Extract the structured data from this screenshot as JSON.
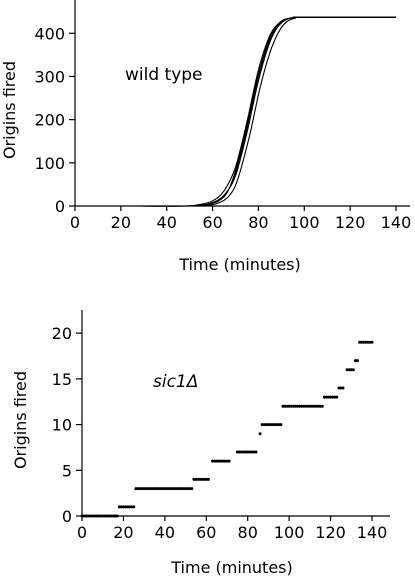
{
  "chart_data": [
    {
      "type": "line",
      "title": "",
      "xlabel": "Time (minutes)",
      "ylabel": "Origins fired",
      "xlim": [
        0,
        140
      ],
      "ylim": [
        0,
        440
      ],
      "xticks": [
        "0",
        "20",
        "40",
        "60",
        "80",
        "100",
        "120",
        "140"
      ],
      "yticks": [
        "0",
        "100",
        "200",
        "300",
        "400"
      ],
      "annotation": "wild type",
      "grid": false,
      "series": [
        {
          "x": [
            28,
            50,
            55,
            60,
            65,
            70,
            75,
            80,
            85,
            90,
            95,
            100,
            140
          ],
          "y": [
            0,
            0,
            2,
            8,
            25,
            70,
            170,
            290,
            380,
            425,
            436,
            437,
            437
          ]
        },
        {
          "x": [
            28,
            48,
            54,
            60,
            65,
            70,
            75,
            80,
            85,
            90,
            95,
            100,
            140
          ],
          "y": [
            0,
            0,
            3,
            12,
            35,
            90,
            195,
            315,
            395,
            428,
            436,
            437,
            437
          ]
        },
        {
          "x": [
            28,
            50,
            56,
            62,
            66,
            70,
            75,
            80,
            85,
            90,
            95,
            100,
            140
          ],
          "y": [
            0,
            0,
            2,
            10,
            30,
            75,
            180,
            300,
            385,
            424,
            436,
            437,
            437
          ]
        },
        {
          "x": [
            28,
            52,
            57,
            62,
            67,
            71,
            76,
            81,
            86,
            91,
            96,
            101,
            140
          ],
          "y": [
            0,
            0,
            1,
            6,
            22,
            62,
            160,
            280,
            370,
            420,
            435,
            437,
            437
          ]
        },
        {
          "x": [
            28,
            49,
            55,
            61,
            66,
            70,
            75,
            80,
            85,
            90,
            95,
            100,
            140
          ],
          "y": [
            0,
            0,
            2,
            9,
            28,
            82,
            188,
            305,
            390,
            426,
            436,
            437,
            437
          ]
        }
      ]
    },
    {
      "type": "scatter",
      "title": "",
      "xlabel": "Time (minutes)",
      "ylabel": "Origins fired",
      "xlim": [
        0,
        140
      ],
      "ylim": [
        0,
        21
      ],
      "xticks": [
        "0",
        "20",
        "40",
        "60",
        "80",
        "100",
        "120",
        "140"
      ],
      "yticks": [
        "0",
        "5",
        "10",
        "15",
        "20"
      ],
      "annotation": "sic1Δ",
      "grid": false,
      "segments": [
        {
          "x_start": 0,
          "x_end": 17,
          "y": 0
        },
        {
          "x_start": 18,
          "x_end": 25,
          "y": 1
        },
        {
          "x_start": 26,
          "x_end": 53,
          "y": 3
        },
        {
          "x_start": 54,
          "x_end": 61,
          "y": 4
        },
        {
          "x_start": 63,
          "x_end": 71,
          "y": 6
        },
        {
          "x_start": 75,
          "x_end": 84,
          "y": 7
        },
        {
          "x_start": 86,
          "x_end": 86,
          "y": 9
        },
        {
          "x_start": 87,
          "x_end": 96,
          "y": 10
        },
        {
          "x_start": 97,
          "x_end": 116,
          "y": 12
        },
        {
          "x_start": 117,
          "x_end": 123,
          "y": 13
        },
        {
          "x_start": 124,
          "x_end": 126,
          "y": 14
        },
        {
          "x_start": 128,
          "x_end": 131,
          "y": 16
        },
        {
          "x_start": 132,
          "x_end": 133,
          "y": 17
        },
        {
          "x_start": 134,
          "x_end": 140,
          "y": 19
        }
      ]
    }
  ]
}
